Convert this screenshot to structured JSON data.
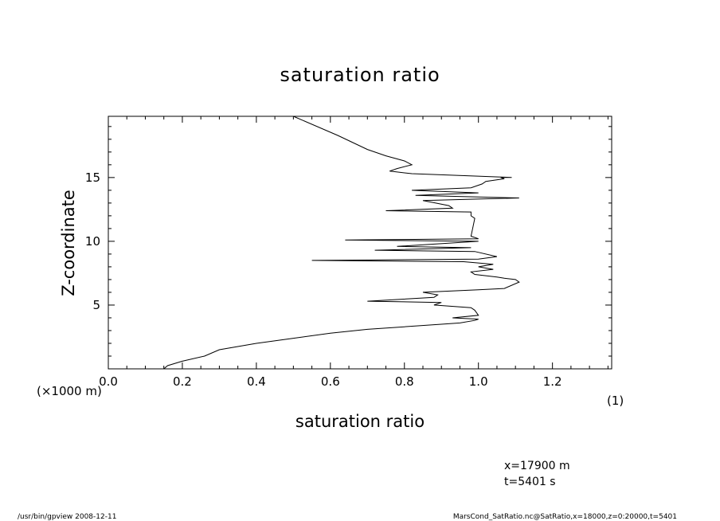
{
  "chart_data": {
    "type": "line",
    "title": "saturation ratio",
    "xlabel": "saturation ratio",
    "ylabel": "Z-coordinate",
    "x_unit": "(1)",
    "y_unit": "(×1000 m)",
    "xlim": [
      0,
      1.36
    ],
    "ylim": [
      0,
      19.8
    ],
    "x_ticks": [
      "0.0",
      "0.2",
      "0.4",
      "0.6",
      "0.8",
      "1.0",
      "1.2"
    ],
    "x_tick_values": [
      0,
      0.2,
      0.4,
      0.6,
      0.8,
      1.0,
      1.2
    ],
    "y_ticks": [
      "5",
      "10",
      "15"
    ],
    "y_tick_values": [
      5,
      10,
      15
    ],
    "grid": false,
    "series": [
      {
        "x": [
          0.15,
          0.16,
          0.2,
          0.26,
          0.3,
          0.4,
          0.5,
          0.6,
          0.7,
          0.8,
          0.9,
          0.95,
          0.99,
          1.0,
          0.93,
          1.0,
          0.99,
          0.98,
          0.88,
          0.9,
          0.7,
          0.88,
          0.89,
          0.85,
          1.0,
          1.07,
          1.11,
          1.1,
          1.07,
          1.05,
          0.99,
          0.98,
          1.04,
          1.0,
          1.04,
          0.96,
          0.55,
          1.0,
          1.05,
          0.99,
          0.72,
          0.98,
          0.78,
          1.0,
          0.64,
          1.0,
          0.98,
          0.99,
          0.98,
          0.98,
          0.75,
          0.93,
          0.92,
          0.85,
          1.11,
          0.83,
          1.0,
          0.82,
          0.98,
          1.01,
          1.02,
          1.07,
          1.06,
          1.09,
          0.82,
          0.76,
          0.78,
          0.82,
          0.8,
          0.75,
          0.7,
          0.62,
          0.5
        ],
        "y": [
          0.0,
          0.25,
          0.6,
          1.0,
          1.5,
          2.0,
          2.4,
          2.8,
          3.1,
          3.3,
          3.5,
          3.6,
          3.8,
          3.9,
          4.0,
          4.2,
          4.6,
          4.8,
          5.0,
          5.2,
          5.3,
          5.6,
          5.8,
          6.0,
          6.2,
          6.3,
          6.8,
          7.0,
          7.1,
          7.2,
          7.4,
          7.6,
          7.8,
          8.0,
          8.2,
          8.4,
          8.5,
          8.6,
          8.8,
          9.2,
          9.3,
          9.5,
          9.6,
          10.0,
          10.1,
          10.2,
          10.4,
          11.8,
          12.0,
          12.3,
          12.4,
          12.6,
          12.8,
          13.2,
          13.4,
          13.6,
          13.8,
          14.0,
          14.2,
          14.5,
          14.7,
          14.9,
          15.0,
          15.0,
          15.3,
          15.5,
          15.7,
          16.0,
          16.3,
          16.7,
          17.2,
          18.3,
          19.8
        ]
      }
    ],
    "annotations": [
      "x=17900 m",
      "t=5401 s"
    ]
  },
  "footer": {
    "left": "/usr/bin/gpview   2008-12-11",
    "right": "MarsCond_SatRatio.nc@SatRatio,x=18000,z=0:20000,t=5401"
  }
}
